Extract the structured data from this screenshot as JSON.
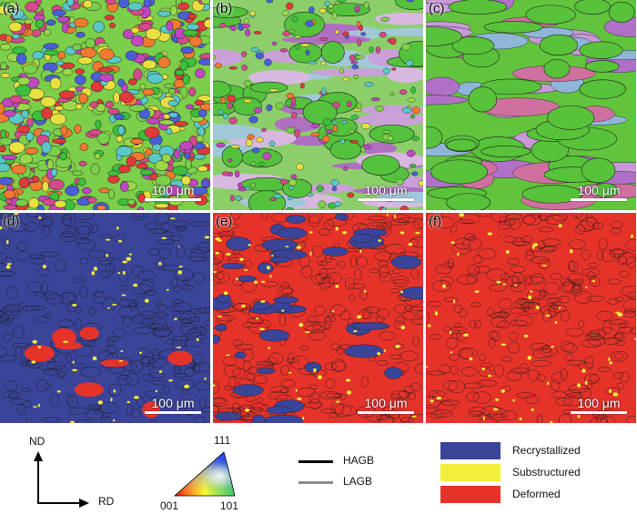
{
  "panels": [
    {
      "label": "(a)",
      "scale": "100 μm",
      "map": "ipf",
      "coverage": "equiaxed"
    },
    {
      "label": "(b)",
      "scale": "100 μm",
      "map": "ipf",
      "coverage": "mixed"
    },
    {
      "label": "(c)",
      "scale": "100 μm",
      "map": "ipf",
      "coverage": "coarse"
    },
    {
      "label": "(d)",
      "scale": "100 μm",
      "map": "phase",
      "base": "#3a4499"
    },
    {
      "label": "(e)",
      "scale": "100 μm",
      "map": "phase",
      "base": "#e6332a"
    },
    {
      "label": "(f)",
      "scale": "100 μm",
      "map": "phase",
      "base": "#e6332a"
    }
  ],
  "axes": {
    "vertical": "ND",
    "horizontal": "RD"
  },
  "ipf_triangle": {
    "top": "111",
    "left": "001",
    "right": "101"
  },
  "boundaries": [
    {
      "label": "HAGB",
      "color": "#000000"
    },
    {
      "label": "LAGB",
      "color": "#8c8c8c"
    }
  ],
  "phases": [
    {
      "label": "Recrystallized",
      "color": "#3a4499"
    },
    {
      "label": "Substructured",
      "color": "#f2ee3c"
    },
    {
      "label": "Deformed",
      "color": "#e6332a"
    }
  ]
}
